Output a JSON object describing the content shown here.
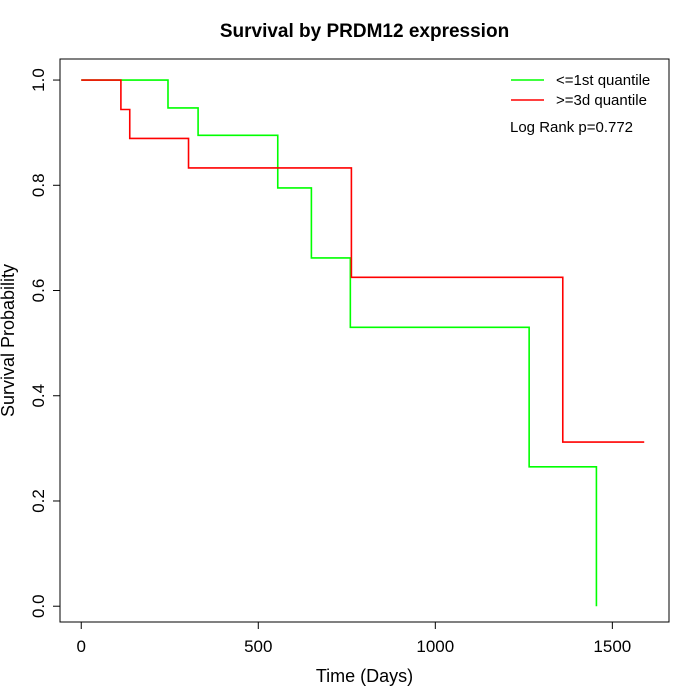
{
  "chart_data": {
    "type": "line",
    "title": "Survival by PRDM12 expression",
    "xlabel": "Time (Days)",
    "ylabel": "Survival Probability",
    "xlim": [
      -60,
      1660
    ],
    "ylim": [
      -0.03,
      1.04
    ],
    "x_ticks": [
      0,
      500,
      1000,
      1500
    ],
    "y_ticks": [
      0.0,
      0.2,
      0.4,
      0.6,
      0.8,
      1.0
    ],
    "y_tick_labels": [
      "0.0",
      "0.2",
      "0.4",
      "0.6",
      "0.8",
      "1.0"
    ],
    "grid": false,
    "legend_position": "top-right",
    "annotation": "Log Rank p=0.772",
    "series": [
      {
        "name": "<=1st quantile",
        "color": "#00ff00",
        "step": true,
        "x": [
          0,
          245,
          330,
          555,
          650,
          760,
          1265,
          1455
        ],
        "y": [
          1.0,
          0.947,
          0.895,
          0.795,
          0.662,
          0.53,
          0.265,
          0.0
        ]
      },
      {
        "name": ">=3d quantile",
        "color": "#ff0000",
        "step": true,
        "x": [
          0,
          112,
          137,
          303,
          763,
          1360,
          1590
        ],
        "y": [
          1.0,
          0.944,
          0.889,
          0.833,
          0.625,
          0.312,
          0.312
        ]
      }
    ]
  }
}
